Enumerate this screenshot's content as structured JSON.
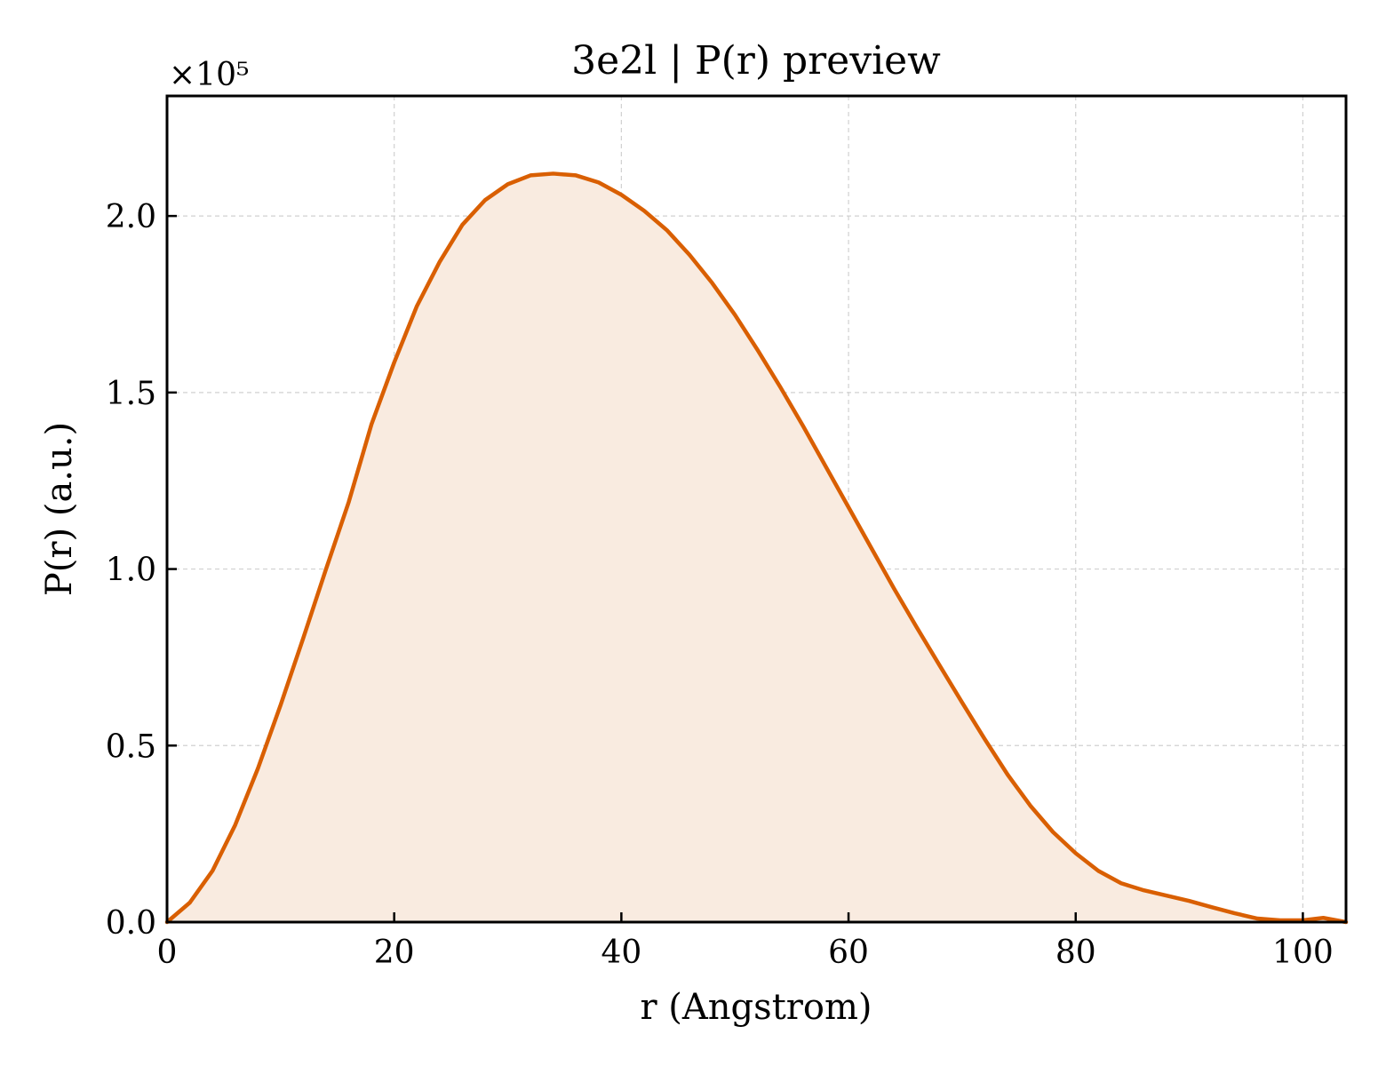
{
  "chart_data": {
    "type": "area",
    "title": "3e2l | P(r) preview",
    "xlabel": "r (Angstrom)",
    "ylabel": "P(r) (a.u.)",
    "y_scale_label": "×10⁵",
    "y_multiplier": 100000,
    "xlim": [
      0,
      103.8
    ],
    "ylim": [
      0,
      2.34
    ],
    "x_ticks": [
      0,
      20,
      40,
      60,
      80,
      100
    ],
    "x_tick_labels": [
      "0",
      "20",
      "40",
      "60",
      "80",
      "100"
    ],
    "y_ticks": [
      0,
      0.5,
      1.0,
      1.5,
      2.0
    ],
    "y_tick_labels": [
      "0.0",
      "0.5",
      "1.0",
      "1.5",
      "2.0"
    ],
    "grid": true,
    "series": [
      {
        "line_color": "#d95f02",
        "fill_color": "#f9ebe0",
        "x": [
          0,
          2,
          4,
          6,
          8,
          10,
          12,
          14,
          16,
          18,
          20,
          22,
          24,
          26,
          28,
          30,
          32,
          34,
          36,
          38,
          40,
          42,
          44,
          46,
          48,
          50,
          52,
          54,
          56,
          58,
          60,
          62,
          64,
          66,
          68,
          70,
          72,
          74,
          76,
          78,
          80,
          82,
          84,
          86,
          88,
          90,
          92,
          94,
          96,
          98,
          100,
          101.8,
          103.8
        ],
        "y": [
          0,
          0.055,
          0.145,
          0.275,
          0.435,
          0.615,
          0.805,
          1.0,
          1.19,
          1.41,
          1.585,
          1.745,
          1.87,
          1.975,
          2.045,
          2.09,
          2.115,
          2.12,
          2.115,
          2.095,
          2.06,
          2.015,
          1.96,
          1.89,
          1.81,
          1.72,
          1.62,
          1.515,
          1.405,
          1.29,
          1.175,
          1.06,
          0.945,
          0.835,
          0.728,
          0.622,
          0.518,
          0.418,
          0.33,
          0.255,
          0.195,
          0.145,
          0.11,
          0.09,
          0.075,
          0.06,
          0.042,
          0.025,
          0.01,
          0.005,
          0.005,
          0.012,
          0.0
        ]
      }
    ]
  }
}
